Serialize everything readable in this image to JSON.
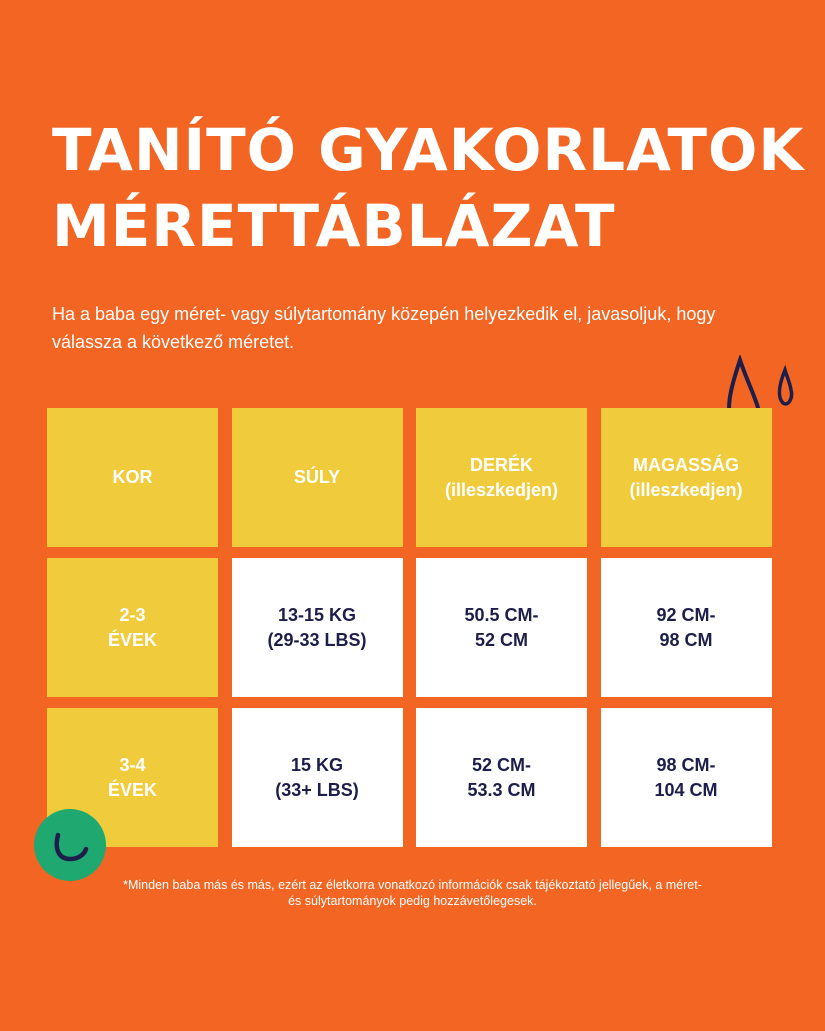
{
  "title": {
    "line1": "TANÍTÓ GYAKORLATOK",
    "line2": "MÉRETTÁBLÁZAT"
  },
  "subtitle": "Ha a baba egy méret- vagy súlytartomány közepén helyezkedik el, javasoljuk, hogy válassza a következő méretet.",
  "table": {
    "headers": [
      "KOR",
      "SÚLY",
      "DERÉK\n(illeszkedjen)",
      "MAGASSÁG\n(illeszkedjen)"
    ],
    "rows": [
      [
        "2-3\nÉVEK",
        "13-15 KG\n(29-33 LBS)",
        "50.5 CM-\n52 CM",
        "92 CM-\n98 CM"
      ],
      [
        "3-4\nÉVEK",
        "15 KG\n(33+ LBS)",
        "52 CM-\n53.3 CM",
        "98 CM-\n104 CM"
      ]
    ]
  },
  "footnote": "*Minden baba más és más, ezért az életkorra vonatkozó információk csak tájékoztató jellegűek, a méret- és súlytartományok pedig hozzávetőlegesek.",
  "colors": {
    "background": "#F26522",
    "header_cell": "#F0CC3C",
    "value_cell": "#FFFFFF",
    "text_dark": "#1E1E4B",
    "accent_green": "#1FA971"
  },
  "decorations": [
    "water-drops-icon",
    "smile-circle-icon"
  ]
}
